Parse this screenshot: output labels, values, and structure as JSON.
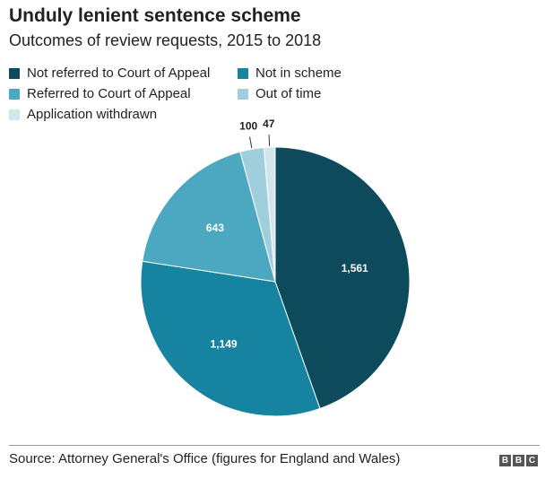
{
  "chart_data": {
    "type": "pie",
    "title": "Unduly lenient sentence scheme",
    "subtitle": "Outcomes of review requests, 2015 to 2018",
    "slices": [
      {
        "label": "Not referred to Court of Appeal",
        "value": 1561,
        "value_label": "1,561",
        "color": "#0c4a5c"
      },
      {
        "label": "Not in scheme",
        "value": 1149,
        "value_label": "1,149",
        "color": "#1683a1"
      },
      {
        "label": "Referred to Court of Appeal",
        "value": 643,
        "value_label": "643",
        "color": "#4ca8c0"
      },
      {
        "label": "Out of time",
        "value": 100,
        "value_label": "100",
        "color": "#9fcfdc"
      },
      {
        "label": "Application withdrawn",
        "value": 47,
        "value_label": "47",
        "color": "#d3e5eb"
      }
    ],
    "legend_placement": "top"
  },
  "footer": {
    "source": "Source: Attorney General's Office (figures for England and Wales)",
    "logo_letters": [
      "B",
      "B",
      "C"
    ]
  }
}
